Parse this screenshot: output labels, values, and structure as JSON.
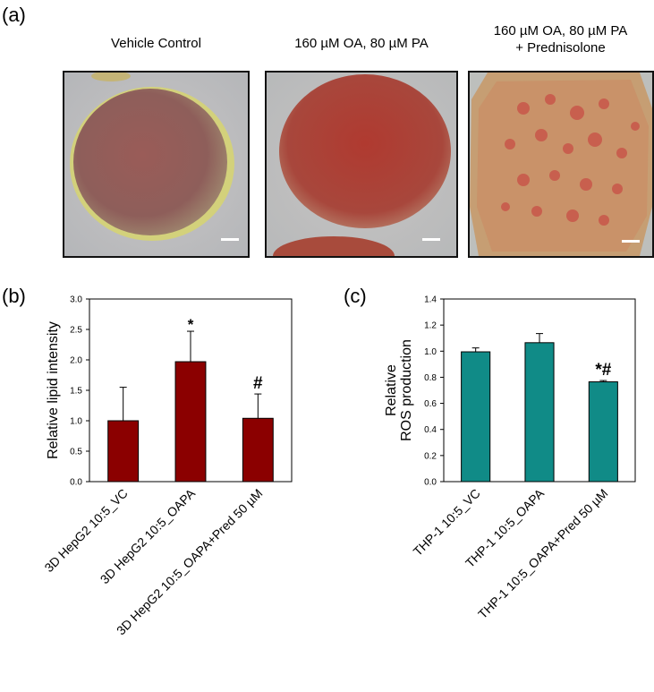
{
  "panels": {
    "a": "(a)",
    "b": "(b)",
    "c": "(c)"
  },
  "images": [
    {
      "title": "Vehicle Control"
    },
    {
      "title": "160 µM OA, 80 µM PA"
    },
    {
      "title_line1": "160 µM OA, 80 µM PA",
      "title_line2": "+ Prednisolone"
    }
  ],
  "colors": {
    "chart_b": "#8b0000",
    "chart_c": "#108b87"
  },
  "chart_data": [
    {
      "type": "bar",
      "panel": "(b)",
      "categories": [
        "3D HepG2 10:5_VC",
        "3D HepG2 10:5_OAPA",
        "3D HepG2 10:5_OAPA+Pred  50 µM"
      ],
      "values": [
        1.0,
        1.97,
        1.04
      ],
      "errors": [
        0.55,
        0.5,
        0.4
      ],
      "annotations": [
        "",
        "*",
        "#"
      ],
      "xlabel": "",
      "ylabel": "Relative lipid intensity",
      "ylim": [
        0,
        3.0
      ],
      "yticks": [
        "0.0",
        "0.5",
        "1.0",
        "1.5",
        "2.0",
        "2.5",
        "3.0"
      ],
      "grid": false
    },
    {
      "type": "bar",
      "panel": "(c)",
      "categories": [
        "THP-1 10:5_VC",
        "THP-1 10:5_OAPA",
        "THP-1 10:5_OAPA+Pred 50 µM"
      ],
      "values": [
        0.995,
        1.065,
        0.765
      ],
      "errors": [
        0.03,
        0.07,
        0.01
      ],
      "annotations": [
        "",
        "",
        "*#"
      ],
      "xlabel": "",
      "ylabel_line1": "Relative",
      "ylabel_line2": "ROS production",
      "ylim": [
        0,
        1.4
      ],
      "yticks": [
        "0.0",
        "0.2",
        "0.4",
        "0.6",
        "0.8",
        "1.0",
        "1.2",
        "1.4"
      ],
      "grid": false
    }
  ]
}
